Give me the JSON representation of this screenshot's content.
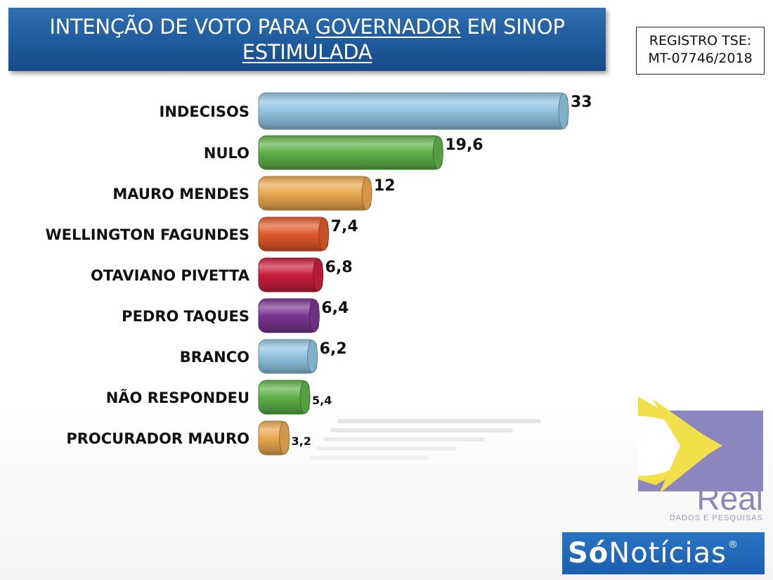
{
  "header": {
    "title_line1_pre": "INTENÇÃO DE VOTO PARA ",
    "title_line1_underlined": "GOVERNADOR",
    "title_line1_post": " EM SINOP",
    "title_line2": "ESTIMULADA"
  },
  "registration": {
    "line1": "REGISTRO TSE:",
    "line2": "MT-07746/2018"
  },
  "branding": {
    "real_name": "Real",
    "real_tagline": "DADOS E PESQUISAS",
    "media_bold": "Só",
    "media_rest": "Notícias",
    "media_mark": "®"
  },
  "chart_data": {
    "type": "bar",
    "orientation": "horizontal",
    "categories": [
      "INDECISOS",
      "NULO",
      "MAURO MENDES",
      "WELLINGTON FAGUNDES",
      "OTAVIANO PIVETTA",
      "PEDRO TAQUES",
      "BRANCO",
      "NÃO RESPONDEU",
      "PROCURADOR MAURO"
    ],
    "values": [
      33,
      19.6,
      12,
      7.4,
      6.8,
      6.4,
      6.2,
      5.4,
      3.2
    ],
    "value_labels": [
      "33",
      "19,6",
      "12",
      "7,4",
      "6,8",
      "6,4",
      "6,2",
      "5,4",
      "3,2"
    ],
    "colors": [
      "#8fc3e0",
      "#5eb048",
      "#e8a84e",
      "#e0592a",
      "#c81f3c",
      "#7a3590",
      "#8fc3e0",
      "#5eb048",
      "#e8a84e"
    ],
    "xlim": [
      0,
      33
    ],
    "grid": false,
    "legend": "none"
  }
}
